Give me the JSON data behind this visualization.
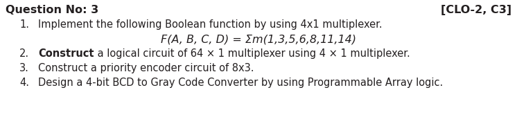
{
  "header_left": "Question No: 3",
  "header_right": "[CLO-2, C3]",
  "item1_plain": "Implement the following Boolean function by using 4x1 multiplexer.",
  "item2_bold": "Construct",
  "item2_rest": " a logical circuit of 64 × 1 multiplexer using 4 × 1 multiplexer.",
  "item3": "Construct a priority encoder circuit of 8x3.",
  "item4": "Design a 4-bit BCD to Gray Code Converter by using Programmable Array logic.",
  "bg_color": "#ffffff",
  "text_color": "#231f20",
  "font_size": 10.5,
  "header_font_size": 11.5,
  "formula": "F(A, B, C, D) = Σm(1,3,5,6,8,11,14)"
}
